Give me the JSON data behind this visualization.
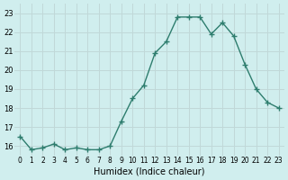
{
  "x": [
    0,
    1,
    2,
    3,
    4,
    5,
    6,
    7,
    8,
    9,
    10,
    11,
    12,
    13,
    14,
    15,
    16,
    17,
    18,
    19,
    20,
    21,
    22,
    23
  ],
  "y": [
    16.5,
    15.8,
    15.9,
    16.1,
    15.8,
    15.9,
    15.8,
    15.8,
    16.0,
    17.3,
    18.5,
    19.2,
    20.9,
    21.5,
    22.8,
    22.8,
    22.8,
    21.9,
    22.5,
    21.8,
    20.3,
    19.0,
    18.3,
    18.0
  ],
  "xlabel": "Humidex (Indice chaleur)",
  "ylim": [
    15.5,
    23.5
  ],
  "xlim": [
    -0.5,
    23.5
  ],
  "yticks": [
    16,
    17,
    18,
    19,
    20,
    21,
    22,
    23
  ],
  "xticks": [
    0,
    1,
    2,
    3,
    4,
    5,
    6,
    7,
    8,
    9,
    10,
    11,
    12,
    13,
    14,
    15,
    16,
    17,
    18,
    19,
    20,
    21,
    22,
    23
  ],
  "xtick_labels": [
    "0",
    "1",
    "2",
    "3",
    "4",
    "5",
    "6",
    "7",
    "8",
    "9",
    "10",
    "11",
    "12",
    "13",
    "14",
    "15",
    "16",
    "17",
    "18",
    "19",
    "20",
    "21",
    "22",
    "23"
  ],
  "line_color": "#2e7d6e",
  "marker": "+",
  "bg_color": "#d0eeee",
  "grid_color": "#c0d8d8",
  "title_color": "#000000"
}
